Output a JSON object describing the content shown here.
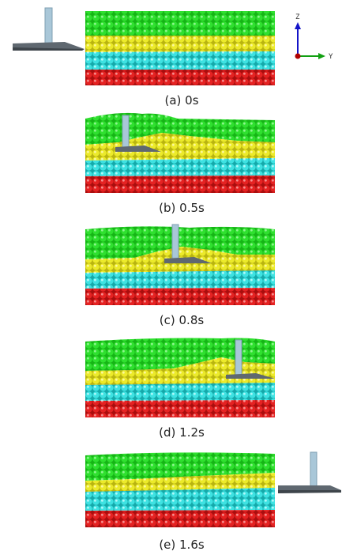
{
  "layer_colors": {
    "top": "#1fd21f",
    "middle": "#e6e01e",
    "lower": "#2ed6d6",
    "bottom": "#dd1717"
  },
  "tool_colors": {
    "shank": "#a9c7d8",
    "blade": "#5f6870"
  },
  "axes": {
    "z_label": "Z",
    "y_label": "Y",
    "z_color": "#1414c8",
    "y_color": "#12a012",
    "origin_color": "#b00000"
  },
  "panels": [
    {
      "caption": "(a)  0s"
    },
    {
      "caption": "(b)  0.5s"
    },
    {
      "caption": "(c)  0.8s"
    },
    {
      "caption": "(d)  1.2s"
    },
    {
      "caption": "(e)  1.6s"
    }
  ]
}
